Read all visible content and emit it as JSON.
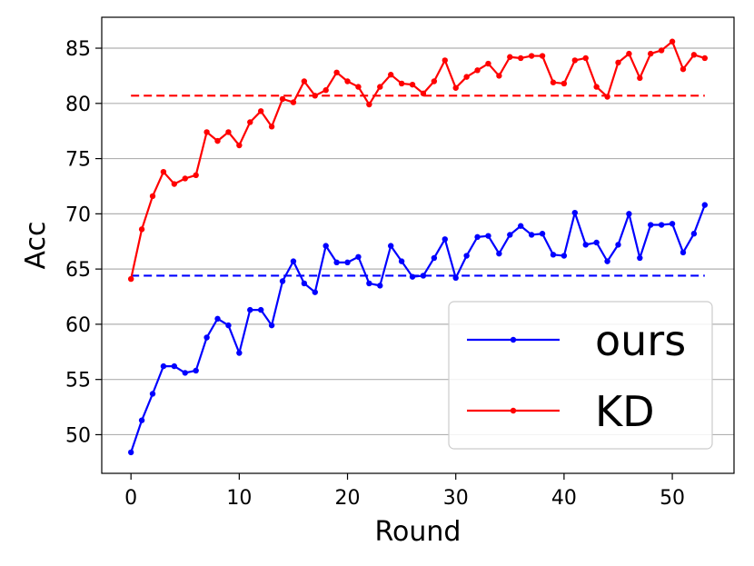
{
  "chart_data": {
    "type": "line",
    "xlabel": "Round",
    "ylabel": "Acc",
    "xlim": [
      -2.7,
      55.7
    ],
    "ylim": [
      46.5,
      87.8
    ],
    "x_ticks": [
      0,
      10,
      20,
      30,
      40,
      50
    ],
    "y_ticks": [
      50,
      55,
      60,
      65,
      70,
      75,
      80,
      85
    ],
    "grid": "horizontal",
    "legend_position": "lower-right",
    "series": [
      {
        "name": "ours",
        "color": "#0000ff",
        "x": [
          0,
          1,
          2,
          3,
          4,
          5,
          6,
          7,
          8,
          9,
          10,
          11,
          12,
          13,
          14,
          15,
          16,
          17,
          18,
          19,
          20,
          21,
          22,
          23,
          24,
          25,
          26,
          27,
          28,
          29,
          30,
          31,
          32,
          33,
          34,
          35,
          36,
          37,
          38,
          39,
          40,
          41,
          42,
          43,
          44,
          45,
          46,
          47,
          48,
          49,
          50,
          51,
          52,
          53
        ],
        "values": [
          48.4,
          51.3,
          53.7,
          56.2,
          56.2,
          55.6,
          55.8,
          58.8,
          60.5,
          59.9,
          57.4,
          61.3,
          61.3,
          59.9,
          63.9,
          65.7,
          63.7,
          62.9,
          67.1,
          65.6,
          65.6,
          66.1,
          63.7,
          63.5,
          67.1,
          65.7,
          64.3,
          64.4,
          66.0,
          67.7,
          64.2,
          66.2,
          67.9,
          68.0,
          66.4,
          68.1,
          68.9,
          68.1,
          68.2,
          66.3,
          66.2,
          70.1,
          67.2,
          67.4,
          65.7,
          67.2,
          70.0,
          66.0,
          69.0,
          69.0,
          69.1,
          66.5,
          68.2,
          70.8
        ]
      },
      {
        "name": "KD",
        "color": "#ff0000",
        "x": [
          0,
          1,
          2,
          3,
          4,
          5,
          6,
          7,
          8,
          9,
          10,
          11,
          12,
          13,
          14,
          15,
          16,
          17,
          18,
          19,
          20,
          21,
          22,
          23,
          24,
          25,
          26,
          27,
          28,
          29,
          30,
          31,
          32,
          33,
          34,
          35,
          36,
          37,
          38,
          39,
          40,
          41,
          42,
          43,
          44,
          45,
          46,
          47,
          48,
          49,
          50,
          51,
          52,
          53
        ],
        "values": [
          64.1,
          68.6,
          71.6,
          73.8,
          72.7,
          73.2,
          73.5,
          77.4,
          76.6,
          77.4,
          76.2,
          78.3,
          79.3,
          77.9,
          80.4,
          80.1,
          82.0,
          80.7,
          81.2,
          82.8,
          82.0,
          81.5,
          79.9,
          81.5,
          82.6,
          81.8,
          81.7,
          80.9,
          82.0,
          83.9,
          81.4,
          82.4,
          83.0,
          83.6,
          82.5,
          84.2,
          84.1,
          84.3,
          84.3,
          81.9,
          81.8,
          83.9,
          84.1,
          81.5,
          80.6,
          83.7,
          84.5,
          82.3,
          84.5,
          84.8,
          85.6,
          83.1,
          84.4,
          84.1
        ]
      }
    ],
    "reference_lines": [
      {
        "series": "ours",
        "style": "dashed",
        "color": "#0000ff",
        "y": 64.4,
        "x_range": [
          0,
          53
        ]
      },
      {
        "series": "KD",
        "style": "dashed",
        "color": "#ff0000",
        "y": 80.7,
        "x_range": [
          0,
          53
        ]
      }
    ]
  }
}
